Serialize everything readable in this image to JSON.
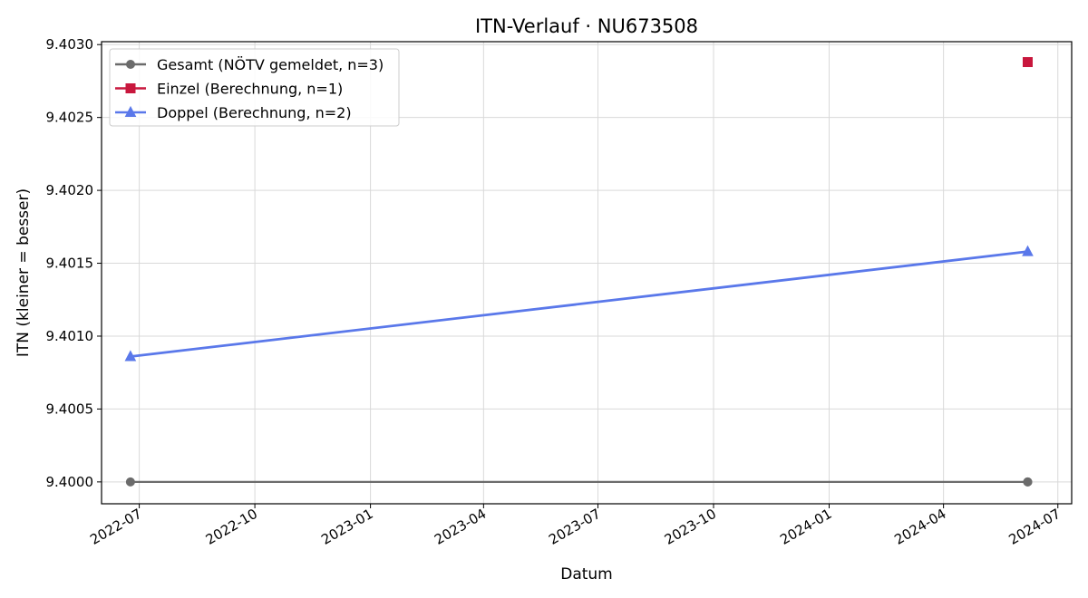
{
  "chart_data": {
    "type": "line",
    "title": "ITN-Verlauf · NU673508",
    "xlabel": "Datum",
    "ylabel": "ITN  (kleiner = besser)",
    "x_axis_type": "date",
    "xlim": [
      "2022-06-01",
      "2024-07-12"
    ],
    "ylim": [
      9.39985,
      9.40302
    ],
    "x_ticks": [
      "2022-07-01",
      "2022-10-01",
      "2023-01-01",
      "2023-04-01",
      "2023-07-01",
      "2023-10-01",
      "2024-01-01",
      "2024-04-01",
      "2024-07-01"
    ],
    "x_tick_labels": [
      "2022-07",
      "2022-10",
      "2023-01",
      "2023-04",
      "2023-07",
      "2023-10",
      "2024-01",
      "2024-04",
      "2024-07"
    ],
    "y_ticks": [
      9.4,
      9.4005,
      9.401,
      9.4015,
      9.402,
      9.4025,
      9.403
    ],
    "y_tick_labels": [
      "9.4000",
      "9.4005",
      "9.4010",
      "9.4015",
      "9.4020",
      "9.4025",
      "9.4030"
    ],
    "grid": true,
    "legend_position": "top-left",
    "series": [
      {
        "name": "Gesamt (NÖTV gemeldet, n=3)",
        "color": "#6b6b6b",
        "marker": "circle",
        "points": [
          {
            "x": "2022-06-24",
            "y": 9.4
          },
          {
            "x": "2024-06-07",
            "y": 9.4
          },
          {
            "x": "2024-06-07",
            "y": 9.4
          }
        ]
      },
      {
        "name": "Einzel (Berechnung, n=1)",
        "color": "#c8173d",
        "marker": "square",
        "points": [
          {
            "x": "2024-06-07",
            "y": 9.40288
          }
        ]
      },
      {
        "name": "Doppel (Berechnung, n=2)",
        "color": "#5a78ea",
        "marker": "triangle",
        "points": [
          {
            "x": "2022-06-24",
            "y": 9.40086
          },
          {
            "x": "2024-06-07",
            "y": 9.40158
          }
        ]
      }
    ]
  }
}
